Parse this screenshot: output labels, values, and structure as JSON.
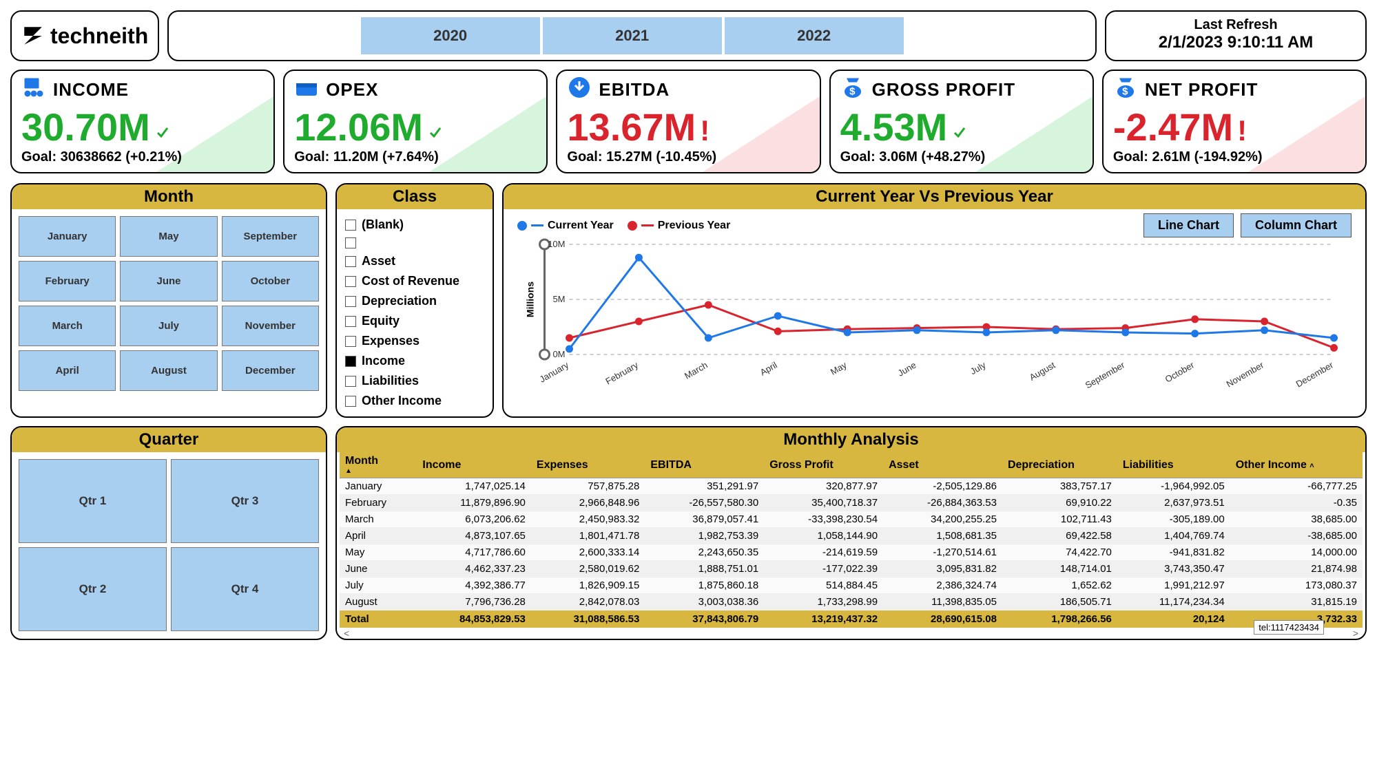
{
  "brand": "techneith",
  "years": [
    "2020",
    "2021",
    "2022"
  ],
  "refresh": {
    "label": "Last Refresh",
    "timestamp": "2/1/2023 9:10:11 AM"
  },
  "kpis": [
    {
      "name": "INCOME",
      "value": "30.70M",
      "goal": "Goal: 30638662 (+0.21%)",
      "positive": true
    },
    {
      "name": "OPEX",
      "value": "12.06M",
      "goal": "Goal: 11.20M (+7.64%)",
      "positive": true
    },
    {
      "name": "EBITDA",
      "value": "13.67M",
      "goal": "Goal: 15.27M (-10.45%)",
      "positive": false
    },
    {
      "name": "GROSS PROFIT",
      "value": "4.53M",
      "goal": "Goal: 3.06M (+48.27%)",
      "positive": true
    },
    {
      "name": "NET PROFIT",
      "value": "-2.47M",
      "goal": "Goal: 2.61M (-194.92%)",
      "positive": false
    }
  ],
  "filters": {
    "month_title": "Month",
    "months": [
      "January",
      "May",
      "September",
      "February",
      "June",
      "October",
      "March",
      "July",
      "November",
      "April",
      "August",
      "December"
    ],
    "class_title": "Class",
    "classes": [
      {
        "label": "(Blank)",
        "selected": false
      },
      {
        "label": "",
        "selected": false
      },
      {
        "label": "Asset",
        "selected": false
      },
      {
        "label": "Cost of Revenue",
        "selected": false
      },
      {
        "label": "Depreciation",
        "selected": false
      },
      {
        "label": "Equity",
        "selected": false
      },
      {
        "label": "Expenses",
        "selected": false
      },
      {
        "label": "Income",
        "selected": true
      },
      {
        "label": "Liabilities",
        "selected": false
      },
      {
        "label": "Other Income",
        "selected": false
      }
    ],
    "quarter_title": "Quarter",
    "quarters": [
      "Qtr 1",
      "Qtr 3",
      "Qtr 2",
      "Qtr 4"
    ]
  },
  "chart": {
    "title": "Current Year Vs Previous Year",
    "legend": [
      {
        "label": "Current Year",
        "color": "#1f78e8"
      },
      {
        "label": "Previous Year",
        "color": "#d9242e"
      }
    ],
    "tabs": [
      "Line Chart",
      "Column Chart"
    ],
    "y_title": "Millions",
    "y_ticks": [
      "10M",
      "5M",
      "0M"
    ],
    "x_labels": [
      "January",
      "February",
      "March",
      "April",
      "May",
      "June",
      "July",
      "August",
      "September",
      "October",
      "November",
      "December"
    ],
    "series_current": [
      0.5,
      8.8,
      1.5,
      3.5,
      2.0,
      2.2,
      2.0,
      2.2,
      2.0,
      1.9,
      2.2,
      1.5
    ],
    "series_previous": [
      1.5,
      3.0,
      4.5,
      2.1,
      2.3,
      2.4,
      2.5,
      2.3,
      2.4,
      3.2,
      3.0,
      0.6
    ],
    "y_max": 10,
    "colors": {
      "current": "#1f78e8",
      "previous": "#d9242e",
      "grid": "#999999"
    }
  },
  "table": {
    "title": "Monthly Analysis",
    "columns": [
      "Month",
      "Income",
      "Expenses",
      "EBITDA",
      "Gross Profit",
      "Asset",
      "Depreciation",
      "Liabilities",
      "Other Income"
    ],
    "rows": [
      [
        "January",
        "1,747,025.14",
        "757,875.28",
        "351,291.97",
        "320,877.97",
        "-2,505,129.86",
        "383,757.17",
        "-1,964,992.05",
        "-66,777.25"
      ],
      [
        "February",
        "11,879,896.90",
        "2,966,848.96",
        "-26,557,580.30",
        "35,400,718.37",
        "-26,884,363.53",
        "69,910.22",
        "2,637,973.51",
        "-0.35"
      ],
      [
        "March",
        "6,073,206.62",
        "2,450,983.32",
        "36,879,057.41",
        "-33,398,230.54",
        "34,200,255.25",
        "102,711.43",
        "-305,189.00",
        "38,685.00"
      ],
      [
        "April",
        "4,873,107.65",
        "1,801,471.78",
        "1,982,753.39",
        "1,058,144.90",
        "1,508,681.35",
        "69,422.58",
        "1,404,769.74",
        "-38,685.00"
      ],
      [
        "May",
        "4,717,786.60",
        "2,600,333.14",
        "2,243,650.35",
        "-214,619.59",
        "-1,270,514.61",
        "74,422.70",
        "-941,831.82",
        "14,000.00"
      ],
      [
        "June",
        "4,462,337.23",
        "2,580,019.62",
        "1,888,751.01",
        "-177,022.39",
        "3,095,831.82",
        "148,714.01",
        "3,743,350.47",
        "21,874.98"
      ],
      [
        "July",
        "4,392,386.77",
        "1,826,909.15",
        "1,875,860.18",
        "514,884.45",
        "2,386,324.74",
        "1,652.62",
        "1,991,212.97",
        "173,080.37"
      ],
      [
        "August",
        "7,796,736.28",
        "2,842,078.03",
        "3,003,038.36",
        "1,733,298.99",
        "11,398,835.05",
        "186,505.71",
        "11,174,234.34",
        "31,815.19"
      ]
    ],
    "total": [
      "Total",
      "84,853,829.53",
      "31,088,586.53",
      "37,843,806.79",
      "13,219,437.32",
      "28,690,615.08",
      "1,798,266.56",
      "20,124",
      "3,732.33"
    ],
    "tooltip": "tel:1117423434"
  }
}
